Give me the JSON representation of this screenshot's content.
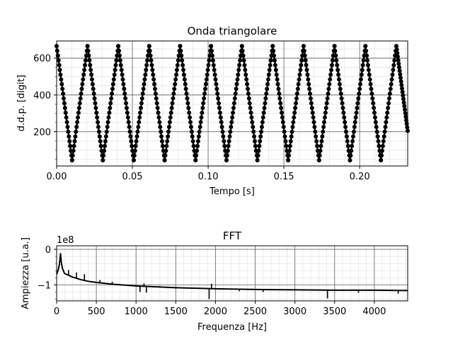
{
  "chart_data": [
    {
      "type": "line",
      "title": "Onda triangolare",
      "xlabel": "Tempo [s]",
      "ylabel": "d.d.p. [digit]",
      "xlim": [
        0.0,
        0.2317
      ],
      "ylim": [
        14,
        693
      ],
      "xticks": [
        0.0,
        0.05,
        0.1,
        0.15,
        0.2
      ],
      "xtick_labels": [
        "0.00",
        "0.05",
        "0.10",
        "0.15",
        "0.20"
      ],
      "yticks": [
        200,
        400,
        600
      ],
      "ytick_labels": [
        "200",
        "400",
        "600"
      ],
      "grid": "major and minor",
      "series": [
        {
          "color": "#000000",
          "marker": "dot",
          "x": [
            0.0,
            0.0102,
            0.0204,
            0.0305,
            0.0407,
            0.0509,
            0.0611,
            0.0713,
            0.0815,
            0.0917,
            0.1019,
            0.1121,
            0.1223,
            0.1325,
            0.1426,
            0.1528,
            0.163,
            0.1732,
            0.1834,
            0.1936,
            0.2038,
            0.214,
            0.2242,
            0.2317
          ],
          "values": [
            665,
            45,
            665,
            45,
            665,
            45,
            665,
            45,
            665,
            45,
            665,
            45,
            665,
            45,
            665,
            45,
            665,
            45,
            665,
            45,
            665,
            45,
            665,
            205
          ]
        }
      ]
    },
    {
      "type": "line",
      "title": "FFT",
      "xlabel": "Frequenza [Hz]",
      "ylabel": "Ampiezza [u.a.]",
      "offset_label": "1e8",
      "xlim": [
        0,
        4420
      ],
      "ylim": [
        -1.45,
        0.1
      ],
      "xticks": [
        0,
        500,
        1000,
        1500,
        2000,
        2500,
        3000,
        3500,
        4000
      ],
      "xtick_labels": [
        "0",
        "500",
        "1000",
        "1500",
        "2000",
        "2500",
        "3000",
        "3500",
        "4000"
      ],
      "yticks": [
        0,
        -1
      ],
      "ytick_labels": [
        "0",
        "−1"
      ],
      "grid": "major and minor",
      "series": [
        {
          "color": "#000000",
          "x": [
            0,
            20,
            35,
            49,
            60,
            75,
            100,
            150,
            200,
            300,
            400,
            500,
            700,
            1000,
            1500,
            2000,
            2500,
            3000,
            3500,
            4000,
            4420
          ],
          "values": [
            -0.7,
            -0.58,
            -0.42,
            -0.12,
            -0.38,
            -0.55,
            -0.68,
            -0.73,
            -0.78,
            -0.85,
            -0.9,
            -0.93,
            -0.98,
            -1.03,
            -1.08,
            -1.11,
            -1.13,
            -1.14,
            -1.15,
            -1.15,
            -1.16
          ]
        }
      ],
      "spikes": [
        {
          "x": 150,
          "value": -0.58
        },
        {
          "x": 250,
          "value": -0.65
        },
        {
          "x": 350,
          "value": -0.7
        },
        {
          "x": 545,
          "value": -0.86
        },
        {
          "x": 700,
          "value": -0.91
        },
        {
          "x": 1050,
          "value": -1.2
        },
        {
          "x": 1100,
          "value": -0.96
        },
        {
          "x": 1130,
          "value": -1.22
        },
        {
          "x": 1300,
          "value": -1.03
        },
        {
          "x": 1920,
          "value": -1.4
        },
        {
          "x": 1950,
          "value": -0.97
        },
        {
          "x": 2300,
          "value": -1.18
        },
        {
          "x": 2600,
          "value": -1.2
        },
        {
          "x": 3410,
          "value": -1.38
        },
        {
          "x": 3800,
          "value": -1.22
        },
        {
          "x": 4300,
          "value": -1.25
        }
      ]
    }
  ]
}
